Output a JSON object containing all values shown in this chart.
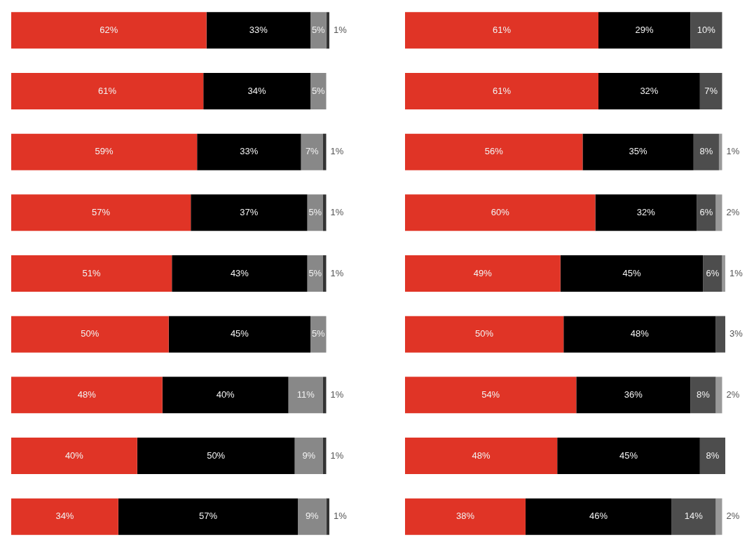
{
  "chart_data": [
    {
      "type": "bar",
      "orientation": "horizontal",
      "stacked": true,
      "legend": false,
      "tick_labels": false,
      "categories": [
        null,
        null,
        null,
        null,
        null,
        null,
        null,
        null,
        null
      ],
      "series": [
        {
          "color": "#e03426",
          "values": [
            62,
            61,
            59,
            57,
            51,
            50,
            48,
            40,
            34
          ],
          "value_labels": [
            "62%",
            "61%",
            "59%",
            "57%",
            "51%",
            "50%",
            "48%",
            "40%",
            "34%"
          ]
        },
        {
          "color": "#000000",
          "values": [
            33,
            34,
            33,
            37,
            43,
            45,
            40,
            50,
            57
          ],
          "value_labels": [
            "33%",
            "34%",
            "33%",
            "37%",
            "43%",
            "45%",
            "40%",
            "50%",
            "57%"
          ]
        },
        {
          "color": "#888888",
          "values": [
            5,
            5,
            7,
            5,
            5,
            5,
            11,
            9,
            9
          ],
          "value_labels": [
            "5%",
            "5%",
            "7%",
            "5%",
            "5%",
            "5%",
            "11%",
            "9%",
            "9%"
          ]
        },
        {
          "color": "#333333",
          "values": [
            1,
            null,
            1,
            1,
            1,
            null,
            1,
            1,
            1
          ],
          "value_labels": [
            "1%",
            null,
            "1%",
            "1%",
            "1%",
            null,
            "1%",
            "1%",
            "1%"
          ]
        }
      ]
    },
    {
      "type": "bar",
      "orientation": "horizontal",
      "stacked": true,
      "legend": false,
      "tick_labels": false,
      "categories": [
        null,
        null,
        null,
        null,
        null,
        null,
        null,
        null,
        null
      ],
      "series": [
        {
          "color": "#e03426",
          "values": [
            61,
            61,
            56,
            60,
            49,
            50,
            54,
            48,
            38
          ],
          "value_labels": [
            "61%",
            "61%",
            "56%",
            "60%",
            "49%",
            "50%",
            "54%",
            "48%",
            "38%"
          ]
        },
        {
          "color": "#000000",
          "values": [
            29,
            32,
            35,
            32,
            45,
            48,
            36,
            45,
            46
          ],
          "value_labels": [
            "29%",
            "32%",
            "35%",
            "32%",
            "45%",
            "48%",
            "36%",
            "45%",
            "46%"
          ]
        },
        {
          "color": "#4d4d4d",
          "values": [
            10,
            7,
            8,
            6,
            6,
            3,
            8,
            8,
            14
          ],
          "value_labels": [
            "10%",
            "7%",
            "8%",
            "6%",
            "6%",
            "3%",
            "8%",
            "8%",
            "14%"
          ]
        },
        {
          "color": "#999999",
          "values": [
            null,
            null,
            1,
            2,
            1,
            null,
            2,
            null,
            2
          ],
          "value_labels": [
            null,
            null,
            "1%",
            "2%",
            "1%",
            null,
            "2%",
            null,
            "2%"
          ]
        }
      ]
    }
  ]
}
